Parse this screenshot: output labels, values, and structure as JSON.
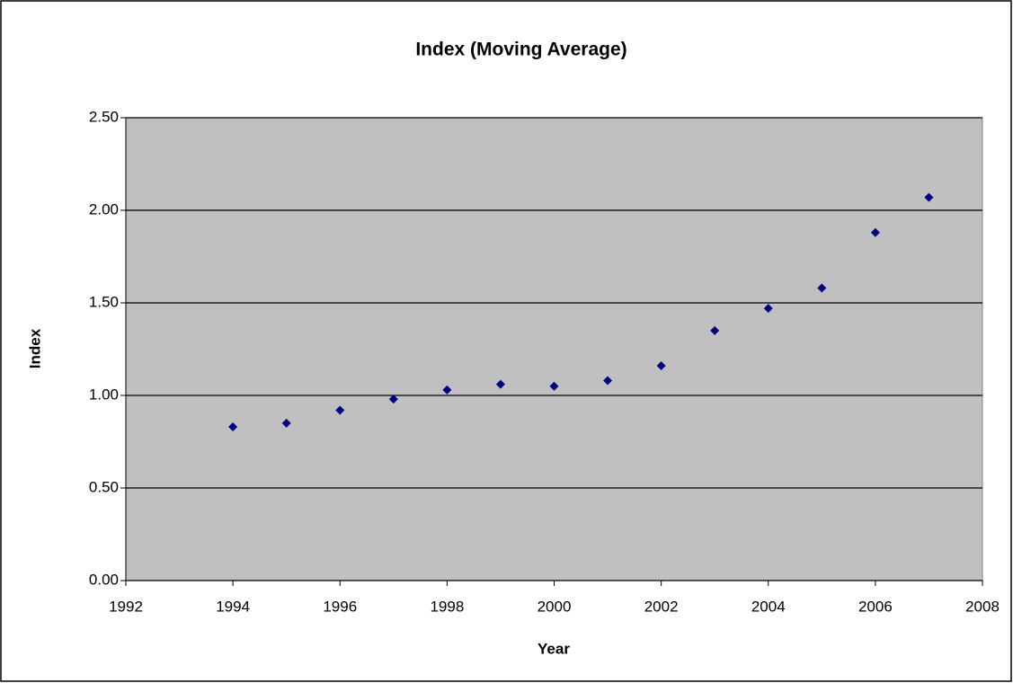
{
  "chart_data": {
    "type": "scatter",
    "title": "Index (Moving Average)",
    "x_label": "Year",
    "y_label": "Index",
    "series": [
      {
        "name": "Index",
        "color": "#000080",
        "x": [
          1994,
          1995,
          1996,
          1997,
          1998,
          1999,
          2000,
          2001,
          2002,
          2003,
          2004,
          2005,
          2006,
          2007
        ],
        "values": [
          0.83,
          0.85,
          0.92,
          0.98,
          1.03,
          1.06,
          1.05,
          1.08,
          1.16,
          1.35,
          1.47,
          1.58,
          1.88,
          2.07
        ]
      }
    ],
    "xlim": [
      1992,
      2008
    ],
    "xticks": [
      1992,
      1994,
      1996,
      1998,
      2000,
      2002,
      2004,
      2006,
      2008
    ],
    "ylim": [
      0,
      2.5
    ],
    "yticks": [
      {
        "value": 0,
        "label": "0.00"
      },
      {
        "value": 0.5,
        "label": "0.50"
      },
      {
        "value": 1,
        "label": "1.00"
      },
      {
        "value": 1.5,
        "label": "1.50"
      },
      {
        "value": 2,
        "label": "2.00"
      },
      {
        "value": 2.5,
        "label": "2.50"
      }
    ],
    "grid": true,
    "plot_background": "#c0c0c0"
  }
}
